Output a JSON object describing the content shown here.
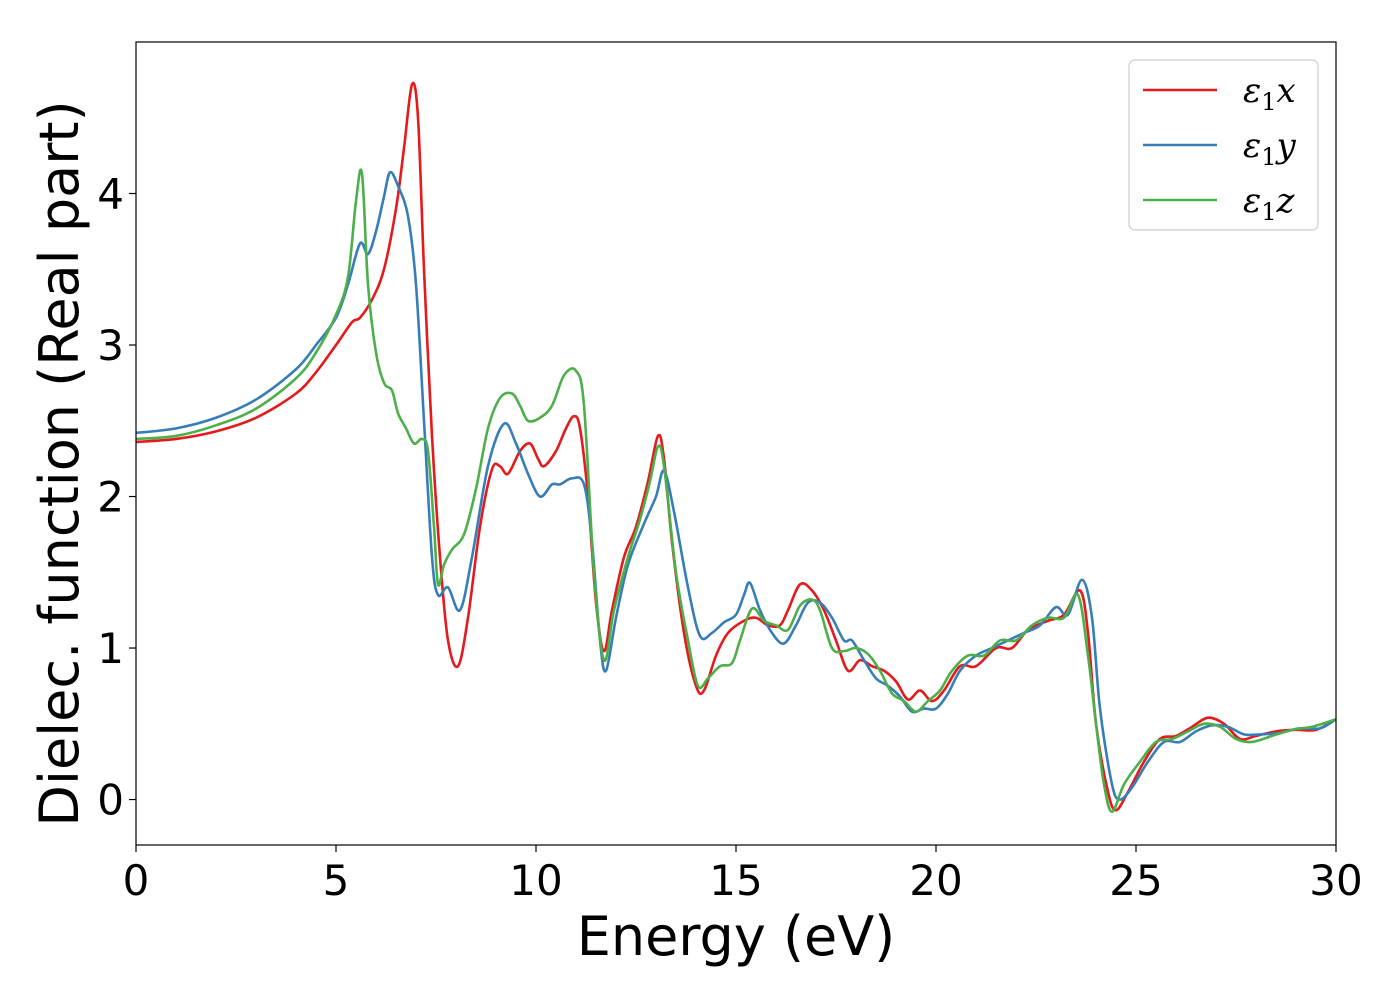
{
  "chart_data": {
    "type": "line",
    "xlabel": "Energy (eV)",
    "ylabel": "Dielec. function (Real part)",
    "xlim": [
      0,
      30
    ],
    "ylim": [
      -0.3,
      5.0
    ],
    "xticks": [
      0,
      5,
      10,
      15,
      20,
      25,
      30
    ],
    "xtick_labels": [
      "0",
      "5",
      "10",
      "15",
      "20",
      "25",
      "30"
    ],
    "yticks": [
      0,
      1,
      2,
      3,
      4
    ],
    "ytick_labels": [
      "0",
      "1",
      "2",
      "3",
      "4"
    ],
    "grid": false,
    "legend_position": "top-right",
    "series": [
      {
        "name": "ε1x",
        "legend_base": "ε",
        "legend_sub": "1",
        "legend_var": "x",
        "color": "#e41a1c",
        "points": [
          [
            0,
            2.36
          ],
          [
            1,
            2.38
          ],
          [
            2,
            2.43
          ],
          [
            3,
            2.52
          ],
          [
            4,
            2.68
          ],
          [
            4.5,
            2.82
          ],
          [
            5,
            3.0
          ],
          [
            5.4,
            3.15
          ],
          [
            5.6,
            3.18
          ],
          [
            5.9,
            3.3
          ],
          [
            6.2,
            3.5
          ],
          [
            6.5,
            3.9
          ],
          [
            6.7,
            4.3
          ],
          [
            6.9,
            4.72
          ],
          [
            7.05,
            4.5
          ],
          [
            7.2,
            3.5
          ],
          [
            7.4,
            2.4
          ],
          [
            7.6,
            1.6
          ],
          [
            7.8,
            1.05
          ],
          [
            8.05,
            0.88
          ],
          [
            8.3,
            1.2
          ],
          [
            8.6,
            1.8
          ],
          [
            8.9,
            2.18
          ],
          [
            9.1,
            2.2
          ],
          [
            9.3,
            2.15
          ],
          [
            9.6,
            2.3
          ],
          [
            9.85,
            2.35
          ],
          [
            10.05,
            2.25
          ],
          [
            10.2,
            2.2
          ],
          [
            10.5,
            2.3
          ],
          [
            10.75,
            2.45
          ],
          [
            10.95,
            2.53
          ],
          [
            11.1,
            2.45
          ],
          [
            11.3,
            2.0
          ],
          [
            11.5,
            1.3
          ],
          [
            11.7,
            0.98
          ],
          [
            11.9,
            1.25
          ],
          [
            12.2,
            1.6
          ],
          [
            12.5,
            1.8
          ],
          [
            12.8,
            2.1
          ],
          [
            13.05,
            2.4
          ],
          [
            13.2,
            2.25
          ],
          [
            13.4,
            1.7
          ],
          [
            13.7,
            1.1
          ],
          [
            14.0,
            0.75
          ],
          [
            14.2,
            0.72
          ],
          [
            14.5,
            0.95
          ],
          [
            14.8,
            1.1
          ],
          [
            15.2,
            1.18
          ],
          [
            15.5,
            1.2
          ],
          [
            15.8,
            1.15
          ],
          [
            16.1,
            1.15
          ],
          [
            16.3,
            1.25
          ],
          [
            16.6,
            1.42
          ],
          [
            16.9,
            1.38
          ],
          [
            17.2,
            1.25
          ],
          [
            17.5,
            1.05
          ],
          [
            17.8,
            0.85
          ],
          [
            18.1,
            0.92
          ],
          [
            18.4,
            0.88
          ],
          [
            18.7,
            0.85
          ],
          [
            19.0,
            0.78
          ],
          [
            19.3,
            0.66
          ],
          [
            19.6,
            0.72
          ],
          [
            19.9,
            0.65
          ],
          [
            20.2,
            0.72
          ],
          [
            20.6,
            0.88
          ],
          [
            21.0,
            0.88
          ],
          [
            21.5,
            1.0
          ],
          [
            21.9,
            1.0
          ],
          [
            22.3,
            1.12
          ],
          [
            22.8,
            1.18
          ],
          [
            23.2,
            1.22
          ],
          [
            23.6,
            1.38
          ],
          [
            23.8,
            1.1
          ],
          [
            24.0,
            0.5
          ],
          [
            24.3,
            0.05
          ],
          [
            24.5,
            -0.07
          ],
          [
            24.8,
            0.05
          ],
          [
            25.2,
            0.25
          ],
          [
            25.6,
            0.4
          ],
          [
            26.0,
            0.42
          ],
          [
            26.4,
            0.48
          ],
          [
            26.8,
            0.54
          ],
          [
            27.2,
            0.5
          ],
          [
            27.6,
            0.4
          ],
          [
            28.0,
            0.42
          ],
          [
            28.5,
            0.45
          ],
          [
            29.0,
            0.46
          ],
          [
            29.5,
            0.46
          ],
          [
            30,
            0.53
          ]
        ]
      },
      {
        "name": "ε1y",
        "legend_base": "ε",
        "legend_sub": "1",
        "legend_var": "y",
        "color": "#377eb8",
        "points": [
          [
            0,
            2.42
          ],
          [
            1,
            2.45
          ],
          [
            2,
            2.52
          ],
          [
            3,
            2.64
          ],
          [
            4,
            2.84
          ],
          [
            4.5,
            3.0
          ],
          [
            5,
            3.18
          ],
          [
            5.3,
            3.4
          ],
          [
            5.6,
            3.67
          ],
          [
            5.8,
            3.6
          ],
          [
            6.0,
            3.75
          ],
          [
            6.2,
            3.98
          ],
          [
            6.35,
            4.14
          ],
          [
            6.55,
            4.05
          ],
          [
            6.8,
            3.85
          ],
          [
            7.0,
            3.4
          ],
          [
            7.2,
            2.5
          ],
          [
            7.4,
            1.6
          ],
          [
            7.55,
            1.35
          ],
          [
            7.8,
            1.4
          ],
          [
            8.1,
            1.25
          ],
          [
            8.4,
            1.6
          ],
          [
            8.8,
            2.2
          ],
          [
            9.2,
            2.48
          ],
          [
            9.5,
            2.35
          ],
          [
            9.8,
            2.15
          ],
          [
            10.1,
            2.0
          ],
          [
            10.4,
            2.08
          ],
          [
            10.6,
            2.08
          ],
          [
            10.9,
            2.12
          ],
          [
            11.2,
            2.08
          ],
          [
            11.4,
            1.7
          ],
          [
            11.6,
            1.05
          ],
          [
            11.75,
            0.85
          ],
          [
            12.0,
            1.2
          ],
          [
            12.3,
            1.55
          ],
          [
            12.7,
            1.82
          ],
          [
            13.0,
            2.0
          ],
          [
            13.2,
            2.17
          ],
          [
            13.45,
            1.9
          ],
          [
            13.8,
            1.4
          ],
          [
            14.1,
            1.08
          ],
          [
            14.4,
            1.1
          ],
          [
            14.7,
            1.17
          ],
          [
            15.0,
            1.22
          ],
          [
            15.2,
            1.35
          ],
          [
            15.35,
            1.43
          ],
          [
            15.6,
            1.25
          ],
          [
            15.9,
            1.1
          ],
          [
            16.2,
            1.03
          ],
          [
            16.5,
            1.15
          ],
          [
            16.8,
            1.3
          ],
          [
            17.1,
            1.3
          ],
          [
            17.4,
            1.2
          ],
          [
            17.7,
            1.05
          ],
          [
            17.9,
            1.05
          ],
          [
            18.2,
            0.92
          ],
          [
            18.5,
            0.8
          ],
          [
            18.8,
            0.75
          ],
          [
            19.1,
            0.68
          ],
          [
            19.4,
            0.58
          ],
          [
            19.7,
            0.6
          ],
          [
            20.0,
            0.6
          ],
          [
            20.3,
            0.7
          ],
          [
            20.6,
            0.85
          ],
          [
            21.0,
            0.95
          ],
          [
            21.4,
            1.0
          ],
          [
            21.8,
            1.05
          ],
          [
            22.2,
            1.1
          ],
          [
            22.6,
            1.15
          ],
          [
            23.0,
            1.27
          ],
          [
            23.3,
            1.22
          ],
          [
            23.65,
            1.45
          ],
          [
            23.9,
            1.2
          ],
          [
            24.1,
            0.6
          ],
          [
            24.4,
            0.1
          ],
          [
            24.6,
            0.0
          ],
          [
            24.9,
            0.08
          ],
          [
            25.3,
            0.25
          ],
          [
            25.7,
            0.38
          ],
          [
            26.1,
            0.38
          ],
          [
            26.5,
            0.45
          ],
          [
            26.9,
            0.49
          ],
          [
            27.3,
            0.48
          ],
          [
            27.7,
            0.43
          ],
          [
            28.1,
            0.43
          ],
          [
            28.6,
            0.44
          ],
          [
            29.1,
            0.47
          ],
          [
            29.6,
            0.47
          ],
          [
            30,
            0.53
          ]
        ]
      },
      {
        "name": "ε1z",
        "legend_base": "ε",
        "legend_sub": "1",
        "legend_var": "z",
        "color": "#4daf4a",
        "points": [
          [
            0,
            2.38
          ],
          [
            1,
            2.4
          ],
          [
            2,
            2.47
          ],
          [
            3,
            2.58
          ],
          [
            4,
            2.78
          ],
          [
            4.5,
            2.95
          ],
          [
            5,
            3.2
          ],
          [
            5.3,
            3.45
          ],
          [
            5.5,
            3.95
          ],
          [
            5.65,
            4.13
          ],
          [
            5.8,
            3.4
          ],
          [
            6.0,
            2.95
          ],
          [
            6.2,
            2.75
          ],
          [
            6.4,
            2.7
          ],
          [
            6.55,
            2.55
          ],
          [
            6.75,
            2.45
          ],
          [
            6.95,
            2.35
          ],
          [
            7.15,
            2.38
          ],
          [
            7.3,
            2.3
          ],
          [
            7.45,
            1.8
          ],
          [
            7.55,
            1.42
          ],
          [
            7.7,
            1.55
          ],
          [
            7.9,
            1.65
          ],
          [
            8.2,
            1.75
          ],
          [
            8.5,
            2.05
          ],
          [
            8.8,
            2.45
          ],
          [
            9.1,
            2.65
          ],
          [
            9.4,
            2.68
          ],
          [
            9.6,
            2.6
          ],
          [
            9.8,
            2.5
          ],
          [
            10.1,
            2.52
          ],
          [
            10.4,
            2.6
          ],
          [
            10.7,
            2.8
          ],
          [
            11.0,
            2.83
          ],
          [
            11.2,
            2.6
          ],
          [
            11.45,
            1.5
          ],
          [
            11.7,
            0.92
          ],
          [
            11.95,
            1.25
          ],
          [
            12.3,
            1.6
          ],
          [
            12.6,
            1.85
          ],
          [
            12.85,
            2.1
          ],
          [
            13.05,
            2.33
          ],
          [
            13.2,
            2.2
          ],
          [
            13.5,
            1.5
          ],
          [
            13.8,
            1.05
          ],
          [
            14.05,
            0.75
          ],
          [
            14.3,
            0.8
          ],
          [
            14.6,
            0.88
          ],
          [
            14.9,
            0.9
          ],
          [
            15.1,
            1.05
          ],
          [
            15.4,
            1.26
          ],
          [
            15.7,
            1.18
          ],
          [
            16.0,
            1.15
          ],
          [
            16.3,
            1.12
          ],
          [
            16.6,
            1.28
          ],
          [
            16.9,
            1.32
          ],
          [
            17.1,
            1.25
          ],
          [
            17.4,
            1.0
          ],
          [
            17.7,
            0.98
          ],
          [
            18.0,
            1.0
          ],
          [
            18.3,
            0.96
          ],
          [
            18.6,
            0.85
          ],
          [
            18.9,
            0.7
          ],
          [
            19.2,
            0.65
          ],
          [
            19.5,
            0.58
          ],
          [
            19.8,
            0.65
          ],
          [
            20.1,
            0.72
          ],
          [
            20.4,
            0.85
          ],
          [
            20.8,
            0.95
          ],
          [
            21.2,
            0.95
          ],
          [
            21.6,
            1.05
          ],
          [
            22.0,
            1.05
          ],
          [
            22.4,
            1.15
          ],
          [
            22.8,
            1.2
          ],
          [
            23.2,
            1.2
          ],
          [
            23.55,
            1.35
          ],
          [
            23.8,
            0.95
          ],
          [
            24.0,
            0.5
          ],
          [
            24.2,
            0.1
          ],
          [
            24.4,
            -0.08
          ],
          [
            24.7,
            0.1
          ],
          [
            25.1,
            0.25
          ],
          [
            25.5,
            0.38
          ],
          [
            25.9,
            0.4
          ],
          [
            26.3,
            0.45
          ],
          [
            26.7,
            0.5
          ],
          [
            27.1,
            0.48
          ],
          [
            27.5,
            0.4
          ],
          [
            27.9,
            0.38
          ],
          [
            28.4,
            0.42
          ],
          [
            28.9,
            0.46
          ],
          [
            29.4,
            0.48
          ],
          [
            30,
            0.53
          ]
        ]
      }
    ]
  }
}
